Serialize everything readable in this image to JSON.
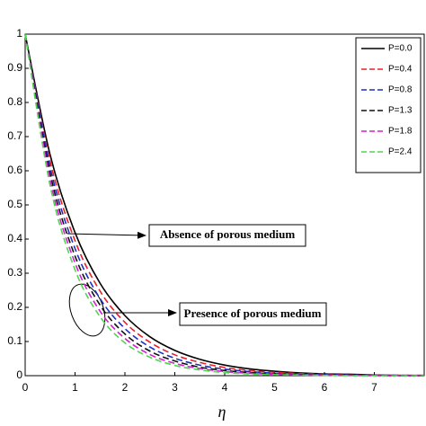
{
  "chart_data": {
    "type": "line",
    "x_label": "η",
    "x": [
      0,
      0.5,
      1,
      1.5,
      2,
      2.5,
      3,
      3.5,
      4,
      4.5,
      5,
      5.5,
      6,
      6.5,
      7,
      7.5,
      8
    ],
    "xlim": [
      0,
      8
    ],
    "xticks": [
      0,
      1,
      2,
      3,
      4,
      5,
      6,
      7
    ],
    "ylim": [
      0,
      1
    ],
    "yticks": [
      0,
      0.1,
      0.2,
      0.3,
      0.4,
      0.5,
      0.6,
      0.7,
      0.8,
      0.9,
      1
    ],
    "legend_position": "upper right",
    "series": [
      {
        "name": "P=0.0",
        "color": "#000000",
        "line_style": "solid",
        "values": [
          1,
          0.647,
          0.419,
          0.271,
          0.176,
          0.114,
          0.074,
          0.048,
          0.031,
          0.02,
          0.013,
          0.008,
          0.005,
          0.004,
          0.002,
          0.001,
          0.001
        ]
      },
      {
        "name": "P=0.4",
        "color": "#e8202a",
        "line_style": "dashed",
        "values": [
          1,
          0.628,
          0.395,
          0.248,
          0.156,
          0.098,
          0.061,
          0.039,
          0.024,
          0.015,
          0.01,
          0.006,
          0.004,
          0.002,
          0.001,
          0.001,
          0.001
        ]
      },
      {
        "name": "P=0.8",
        "color": "#1f2fbf",
        "line_style": "dashed",
        "values": [
          1,
          0.61,
          0.372,
          0.226,
          0.138,
          0.084,
          0.051,
          0.031,
          0.019,
          0.012,
          0.007,
          0.004,
          0.003,
          0.002,
          0.001,
          0.001,
          0
        ]
      },
      {
        "name": "P=1.3",
        "color": "#111111",
        "line_style": "dashed",
        "values": [
          1,
          0.592,
          0.35,
          0.207,
          0.122,
          0.072,
          0.043,
          0.025,
          0.015,
          0.009,
          0.005,
          0.003,
          0.002,
          0.001,
          0.001,
          0,
          0
        ]
      },
      {
        "name": "P=1.8",
        "color": "#d41fd0",
        "line_style": "dashed",
        "values": [
          1,
          0.574,
          0.33,
          0.189,
          0.109,
          0.062,
          0.036,
          0.021,
          0.012,
          0.007,
          0.004,
          0.002,
          0.001,
          0.001,
          0,
          0,
          0
        ]
      },
      {
        "name": "P=2.4",
        "color": "#4fd64f",
        "line_style": "dashed",
        "values": [
          1,
          0.557,
          0.31,
          0.173,
          0.096,
          0.054,
          0.03,
          0.017,
          0.009,
          0.005,
          0.003,
          0.002,
          0.001,
          0,
          0,
          0,
          0
        ]
      }
    ],
    "annotations": [
      "Absence of porous medium",
      "Presence of porous medium"
    ]
  }
}
